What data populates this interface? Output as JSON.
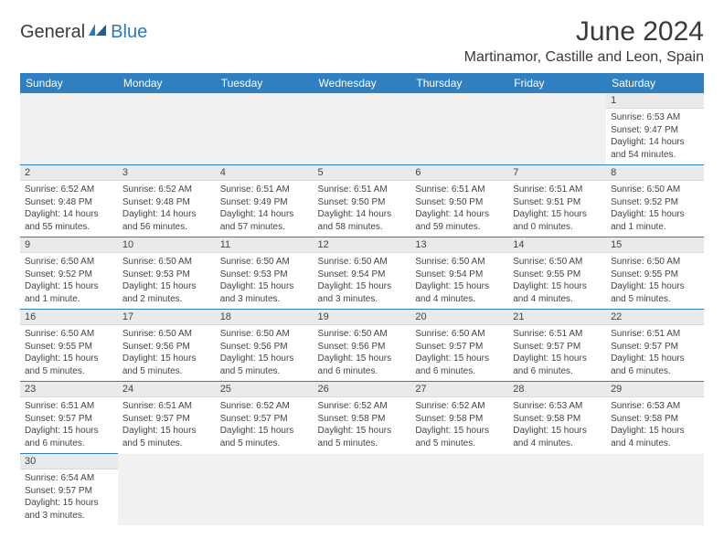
{
  "logo": {
    "dark": "General",
    "blue": "Blue"
  },
  "title": "June 2024",
  "location": "Martinamor, Castille and Leon, Spain",
  "colors": {
    "header_bg": "#2f7fc1",
    "header_fg": "#ffffff",
    "accent": "#2a7ab8",
    "text": "#3a3a3a"
  },
  "day_headers": [
    "Sunday",
    "Monday",
    "Tuesday",
    "Wednesday",
    "Thursday",
    "Friday",
    "Saturday"
  ],
  "weeks": [
    [
      null,
      null,
      null,
      null,
      null,
      null,
      {
        "n": "1",
        "sr": "Sunrise: 6:53 AM",
        "ss": "Sunset: 9:47 PM",
        "dl": "Daylight: 14 hours and 54 minutes."
      }
    ],
    [
      {
        "n": "2",
        "sr": "Sunrise: 6:52 AM",
        "ss": "Sunset: 9:48 PM",
        "dl": "Daylight: 14 hours and 55 minutes."
      },
      {
        "n": "3",
        "sr": "Sunrise: 6:52 AM",
        "ss": "Sunset: 9:48 PM",
        "dl": "Daylight: 14 hours and 56 minutes."
      },
      {
        "n": "4",
        "sr": "Sunrise: 6:51 AM",
        "ss": "Sunset: 9:49 PM",
        "dl": "Daylight: 14 hours and 57 minutes."
      },
      {
        "n": "5",
        "sr": "Sunrise: 6:51 AM",
        "ss": "Sunset: 9:50 PM",
        "dl": "Daylight: 14 hours and 58 minutes."
      },
      {
        "n": "6",
        "sr": "Sunrise: 6:51 AM",
        "ss": "Sunset: 9:50 PM",
        "dl": "Daylight: 14 hours and 59 minutes."
      },
      {
        "n": "7",
        "sr": "Sunrise: 6:51 AM",
        "ss": "Sunset: 9:51 PM",
        "dl": "Daylight: 15 hours and 0 minutes."
      },
      {
        "n": "8",
        "sr": "Sunrise: 6:50 AM",
        "ss": "Sunset: 9:52 PM",
        "dl": "Daylight: 15 hours and 1 minute."
      }
    ],
    [
      {
        "n": "9",
        "sr": "Sunrise: 6:50 AM",
        "ss": "Sunset: 9:52 PM",
        "dl": "Daylight: 15 hours and 1 minute."
      },
      {
        "n": "10",
        "sr": "Sunrise: 6:50 AM",
        "ss": "Sunset: 9:53 PM",
        "dl": "Daylight: 15 hours and 2 minutes."
      },
      {
        "n": "11",
        "sr": "Sunrise: 6:50 AM",
        "ss": "Sunset: 9:53 PM",
        "dl": "Daylight: 15 hours and 3 minutes."
      },
      {
        "n": "12",
        "sr": "Sunrise: 6:50 AM",
        "ss": "Sunset: 9:54 PM",
        "dl": "Daylight: 15 hours and 3 minutes."
      },
      {
        "n": "13",
        "sr": "Sunrise: 6:50 AM",
        "ss": "Sunset: 9:54 PM",
        "dl": "Daylight: 15 hours and 4 minutes."
      },
      {
        "n": "14",
        "sr": "Sunrise: 6:50 AM",
        "ss": "Sunset: 9:55 PM",
        "dl": "Daylight: 15 hours and 4 minutes."
      },
      {
        "n": "15",
        "sr": "Sunrise: 6:50 AM",
        "ss": "Sunset: 9:55 PM",
        "dl": "Daylight: 15 hours and 5 minutes."
      }
    ],
    [
      {
        "n": "16",
        "sr": "Sunrise: 6:50 AM",
        "ss": "Sunset: 9:55 PM",
        "dl": "Daylight: 15 hours and 5 minutes."
      },
      {
        "n": "17",
        "sr": "Sunrise: 6:50 AM",
        "ss": "Sunset: 9:56 PM",
        "dl": "Daylight: 15 hours and 5 minutes."
      },
      {
        "n": "18",
        "sr": "Sunrise: 6:50 AM",
        "ss": "Sunset: 9:56 PM",
        "dl": "Daylight: 15 hours and 5 minutes."
      },
      {
        "n": "19",
        "sr": "Sunrise: 6:50 AM",
        "ss": "Sunset: 9:56 PM",
        "dl": "Daylight: 15 hours and 6 minutes."
      },
      {
        "n": "20",
        "sr": "Sunrise: 6:50 AM",
        "ss": "Sunset: 9:57 PM",
        "dl": "Daylight: 15 hours and 6 minutes."
      },
      {
        "n": "21",
        "sr": "Sunrise: 6:51 AM",
        "ss": "Sunset: 9:57 PM",
        "dl": "Daylight: 15 hours and 6 minutes."
      },
      {
        "n": "22",
        "sr": "Sunrise: 6:51 AM",
        "ss": "Sunset: 9:57 PM",
        "dl": "Daylight: 15 hours and 6 minutes."
      }
    ],
    [
      {
        "n": "23",
        "sr": "Sunrise: 6:51 AM",
        "ss": "Sunset: 9:57 PM",
        "dl": "Daylight: 15 hours and 6 minutes."
      },
      {
        "n": "24",
        "sr": "Sunrise: 6:51 AM",
        "ss": "Sunset: 9:57 PM",
        "dl": "Daylight: 15 hours and 5 minutes."
      },
      {
        "n": "25",
        "sr": "Sunrise: 6:52 AM",
        "ss": "Sunset: 9:57 PM",
        "dl": "Daylight: 15 hours and 5 minutes."
      },
      {
        "n": "26",
        "sr": "Sunrise: 6:52 AM",
        "ss": "Sunset: 9:58 PM",
        "dl": "Daylight: 15 hours and 5 minutes."
      },
      {
        "n": "27",
        "sr": "Sunrise: 6:52 AM",
        "ss": "Sunset: 9:58 PM",
        "dl": "Daylight: 15 hours and 5 minutes."
      },
      {
        "n": "28",
        "sr": "Sunrise: 6:53 AM",
        "ss": "Sunset: 9:58 PM",
        "dl": "Daylight: 15 hours and 4 minutes."
      },
      {
        "n": "29",
        "sr": "Sunrise: 6:53 AM",
        "ss": "Sunset: 9:58 PM",
        "dl": "Daylight: 15 hours and 4 minutes."
      }
    ],
    [
      {
        "n": "30",
        "sr": "Sunrise: 6:54 AM",
        "ss": "Sunset: 9:57 PM",
        "dl": "Daylight: 15 hours and 3 minutes."
      },
      null,
      null,
      null,
      null,
      null,
      null
    ]
  ]
}
